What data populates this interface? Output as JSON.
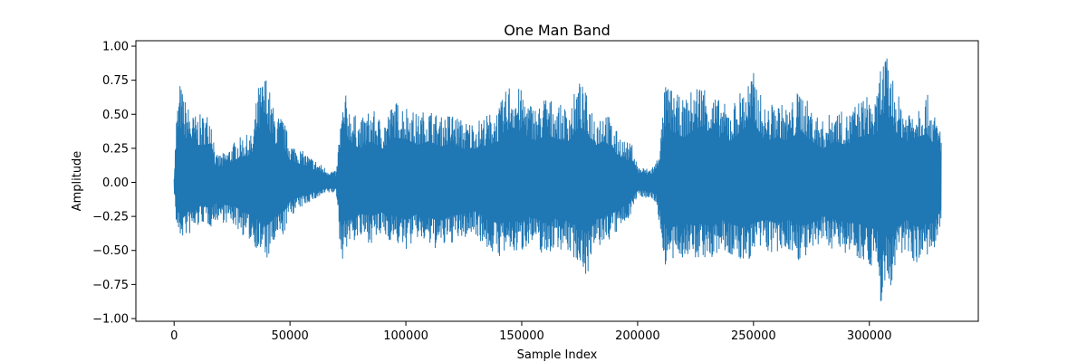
{
  "chart_data": {
    "type": "line",
    "title": "One Man Band",
    "xlabel": "Sample Index",
    "ylabel": "Amplitude",
    "xlim": [
      -16500,
      347000
    ],
    "ylim": [
      -1.02,
      1.04
    ],
    "x_ticks": [
      0,
      50000,
      100000,
      150000,
      200000,
      250000,
      300000
    ],
    "x_tick_labels": [
      "0",
      "50000",
      "100000",
      "150000",
      "200000",
      "250000",
      "300000"
    ],
    "y_ticks": [
      -1.0,
      -0.75,
      -0.5,
      -0.25,
      0.0,
      0.25,
      0.5,
      0.75,
      1.0
    ],
    "y_tick_labels": [
      "−1.00",
      "−0.75",
      "−0.50",
      "−0.25",
      "0.00",
      "0.25",
      "0.50",
      "0.75",
      "1.00"
    ],
    "grid": false,
    "series": [
      {
        "color": "#1f77b4",
        "x_range": [
          0,
          331000
        ],
        "envelope": {
          "x": [
            0,
            1000,
            2500,
            5000,
            8000,
            12000,
            16000,
            18000,
            22000,
            26000,
            30000,
            34000,
            36000,
            38000,
            40000,
            42000,
            44000,
            47000,
            50000,
            54000,
            58000,
            62000,
            66000,
            70000,
            71000,
            72000,
            74000,
            76000,
            80000,
            85000,
            90000,
            95000,
            100000,
            105000,
            110000,
            115000,
            120000,
            125000,
            130000,
            135000,
            140000,
            145000,
            150000,
            153000,
            157000,
            160000,
            165000,
            170000,
            175000,
            178000,
            182000,
            186000,
            190000,
            195000,
            198000,
            200000,
            205000,
            208000,
            210000,
            212000,
            215000,
            220000,
            225000,
            228000,
            232000,
            236000,
            240000,
            245000,
            250000,
            255000,
            260000,
            265000,
            270000,
            275000,
            280000,
            285000,
            290000,
            295000,
            300000,
            303000,
            305000,
            307000,
            309000,
            312000,
            316000,
            320000,
            325000,
            328000,
            331000
          ],
          "max": [
            0.05,
            0.5,
            0.74,
            0.6,
            0.5,
            0.5,
            0.52,
            0.2,
            0.22,
            0.3,
            0.35,
            0.35,
            0.7,
            0.75,
            0.81,
            0.6,
            0.5,
            0.48,
            0.3,
            0.25,
            0.2,
            0.15,
            0.1,
            0.08,
            0.3,
            0.5,
            0.65,
            0.55,
            0.45,
            0.55,
            0.45,
            0.6,
            0.58,
            0.5,
            0.55,
            0.48,
            0.52,
            0.45,
            0.45,
            0.5,
            0.55,
            0.75,
            0.68,
            0.6,
            0.55,
            0.65,
            0.58,
            0.55,
            0.75,
            0.65,
            0.5,
            0.55,
            0.4,
            0.3,
            0.28,
            0.12,
            0.1,
            0.15,
            0.35,
            0.75,
            0.68,
            0.6,
            0.72,
            0.75,
            0.65,
            0.6,
            0.55,
            0.7,
            0.81,
            0.55,
            0.6,
            0.55,
            0.7,
            0.55,
            0.45,
            0.55,
            0.5,
            0.6,
            0.65,
            0.6,
            0.9,
            0.94,
            0.85,
            0.65,
            0.55,
            0.6,
            0.65,
            0.5,
            0.4
          ],
          "min": [
            -0.05,
            -0.35,
            -0.42,
            -0.4,
            -0.38,
            -0.3,
            -0.33,
            -0.28,
            -0.3,
            -0.32,
            -0.4,
            -0.45,
            -0.5,
            -0.55,
            -0.58,
            -0.52,
            -0.45,
            -0.4,
            -0.25,
            -0.2,
            -0.15,
            -0.12,
            -0.08,
            -0.08,
            -0.3,
            -0.6,
            -0.5,
            -0.45,
            -0.42,
            -0.45,
            -0.4,
            -0.45,
            -0.5,
            -0.42,
            -0.48,
            -0.5,
            -0.45,
            -0.42,
            -0.38,
            -0.5,
            -0.55,
            -0.53,
            -0.52,
            -0.45,
            -0.5,
            -0.55,
            -0.48,
            -0.52,
            -0.6,
            -0.69,
            -0.5,
            -0.45,
            -0.4,
            -0.3,
            -0.2,
            -0.1,
            -0.12,
            -0.15,
            -0.4,
            -0.62,
            -0.6,
            -0.55,
            -0.58,
            -0.55,
            -0.6,
            -0.5,
            -0.55,
            -0.6,
            -0.55,
            -0.5,
            -0.55,
            -0.5,
            -0.58,
            -0.55,
            -0.45,
            -0.5,
            -0.52,
            -0.55,
            -0.62,
            -0.6,
            -0.93,
            -0.7,
            -0.82,
            -0.6,
            -0.5,
            -0.6,
            -0.55,
            -0.55,
            -0.35
          ]
        }
      }
    ]
  }
}
